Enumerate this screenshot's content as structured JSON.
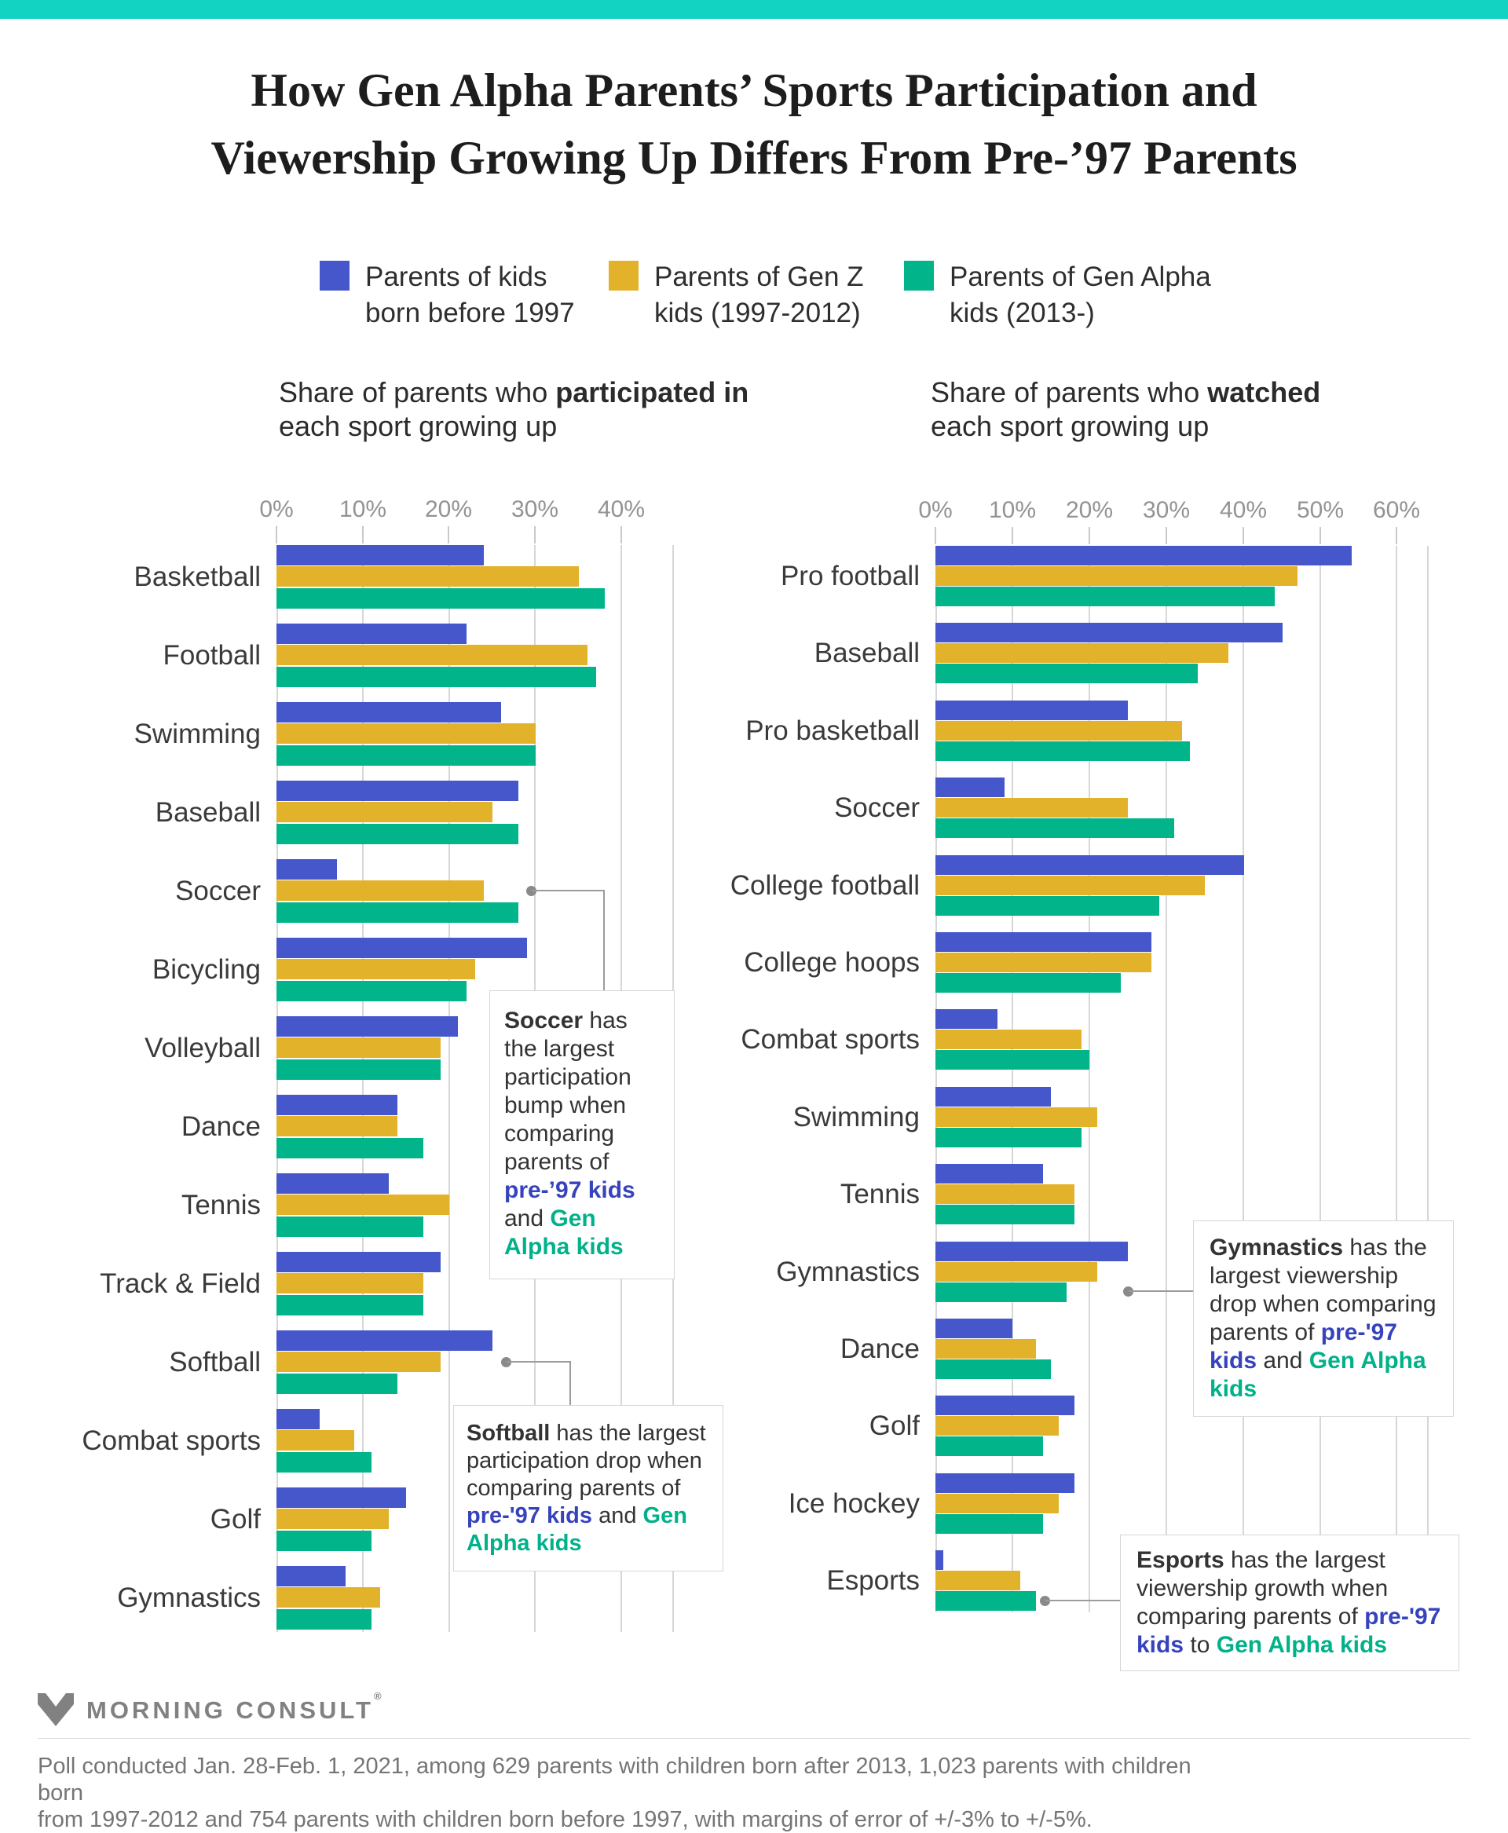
{
  "accent_color": "#12d2c2",
  "bar_colors": {
    "pre97": "#4557cb",
    "genz": "#e3b22b",
    "genalpha": "#02b489"
  },
  "title": {
    "line1": "How Gen Alpha Parents’ Sports Participation and",
    "line2": "Viewership Growing Up Differs From Pre-’97 Parents"
  },
  "legend": {
    "items": [
      {
        "line1": "Parents of kids",
        "line2": "born before 1997",
        "color": "#4557cb"
      },
      {
        "line1": "Parents of Gen Z",
        "line2": "kids (1997-2012)",
        "color": "#e3b22b"
      },
      {
        "line1": "Parents of Gen Alpha",
        "line2": "kids (2013-)",
        "color": "#02b489"
      }
    ]
  },
  "chart_data": [
    {
      "type": "bar",
      "orientation": "horizontal",
      "id": "participation",
      "subtitle_segments": [
        {
          "t": "Share of parents who "
        },
        {
          "t": "participated in",
          "s": "b"
        },
        {
          "t": " each sport growing up"
        }
      ],
      "x_ticks": [
        "0%",
        "10%",
        "20%",
        "30%",
        "40%"
      ],
      "xlim": [
        0,
        46
      ],
      "grid": true,
      "legend_position": "top",
      "series_names": [
        "Parents of kids born before 1997",
        "Parents of Gen Z kids (1997-2012)",
        "Parents of Gen Alpha kids (2013-)"
      ],
      "rows": [
        {
          "label": "Basketball",
          "values": [
            24,
            35,
            38
          ]
        },
        {
          "label": "Football",
          "values": [
            22,
            36,
            37
          ]
        },
        {
          "label": "Swimming",
          "values": [
            26,
            30,
            30
          ]
        },
        {
          "label": "Baseball",
          "values": [
            28,
            25,
            28
          ]
        },
        {
          "label": "Soccer",
          "values": [
            7,
            24,
            28
          ]
        },
        {
          "label": "Bicycling",
          "values": [
            29,
            23,
            22
          ]
        },
        {
          "label": "Volleyball",
          "values": [
            21,
            19,
            19
          ]
        },
        {
          "label": "Dance",
          "values": [
            14,
            14,
            17
          ]
        },
        {
          "label": "Tennis",
          "values": [
            13,
            20,
            17
          ]
        },
        {
          "label": "Track & Field",
          "values": [
            19,
            17,
            17
          ]
        },
        {
          "label": "Softball",
          "values": [
            25,
            19,
            14
          ]
        },
        {
          "label": "Combat sports",
          "values": [
            5,
            9,
            11
          ]
        },
        {
          "label": "Golf",
          "values": [
            15,
            13,
            11
          ]
        },
        {
          "label": "Gymnastics",
          "values": [
            8,
            12,
            11
          ]
        }
      ]
    },
    {
      "type": "bar",
      "orientation": "horizontal",
      "id": "viewership",
      "subtitle_segments": [
        {
          "t": "Share of parents who "
        },
        {
          "t": "watched",
          "s": "b"
        },
        {
          "t": " each sport growing up"
        }
      ],
      "x_ticks": [
        "0%",
        "10%",
        "20%",
        "30%",
        "40%",
        "50%",
        "60%"
      ],
      "xlim": [
        0,
        64
      ],
      "grid": true,
      "legend_position": "top",
      "series_names": [
        "Parents of kids born before 1997",
        "Parents of Gen Z kids (1997-2012)",
        "Parents of Gen Alpha kids (2013-)"
      ],
      "rows": [
        {
          "label": "Pro football",
          "values": [
            54,
            47,
            44
          ]
        },
        {
          "label": "Baseball",
          "values": [
            45,
            38,
            34
          ]
        },
        {
          "label": "Pro basketball",
          "values": [
            25,
            32,
            33
          ]
        },
        {
          "label": "Soccer",
          "values": [
            9,
            25,
            31
          ]
        },
        {
          "label": "College football",
          "values": [
            40,
            35,
            29
          ]
        },
        {
          "label": "College hoops",
          "values": [
            28,
            28,
            24
          ]
        },
        {
          "label": "Combat sports",
          "values": [
            8,
            19,
            20
          ]
        },
        {
          "label": "Swimming",
          "values": [
            15,
            21,
            19
          ]
        },
        {
          "label": "Tennis",
          "values": [
            14,
            18,
            18
          ]
        },
        {
          "label": "Gymnastics",
          "values": [
            25,
            21,
            17
          ]
        },
        {
          "label": "Dance",
          "values": [
            10,
            13,
            15
          ]
        },
        {
          "label": "Golf",
          "values": [
            18,
            16,
            14
          ]
        },
        {
          "label": "Ice hockey",
          "values": [
            18,
            16,
            14
          ]
        },
        {
          "label": "Esports",
          "values": [
            1,
            11,
            13
          ]
        }
      ]
    }
  ],
  "annotations": {
    "soccer": [
      {
        "t": "Soccer",
        "s": "b"
      },
      {
        "t": " has the largest participation bump when comparing parents of "
      },
      {
        "t": "pre-’97 kids",
        "s": "blue"
      },
      {
        "t": " and "
      },
      {
        "t": "Gen Alpha kids",
        "s": "green"
      }
    ],
    "softball": [
      {
        "t": "Softball",
        "s": "b"
      },
      {
        "t": " has the largest participation drop when comparing parents of "
      },
      {
        "t": "pre-'97 kids",
        "s": "blue"
      },
      {
        "t": " and "
      },
      {
        "t": "Gen Alpha kids",
        "s": "green"
      }
    ],
    "gymnastics": [
      {
        "t": "Gymnastics",
        "s": "b"
      },
      {
        "t": " has the largest viewership drop when comparing parents of "
      },
      {
        "t": "pre-'97 kids",
        "s": "blue"
      },
      {
        "t": " and "
      },
      {
        "t": "Gen Alpha kids",
        "s": "green"
      }
    ],
    "esports": [
      {
        "t": "Esports",
        "s": "b"
      },
      {
        "t": " has the largest viewership growth when comparing parents of "
      },
      {
        "t": "pre-'97 kids",
        "s": "blue"
      },
      {
        "t": " to "
      },
      {
        "t": "Gen Alpha kids",
        "s": "green"
      }
    ]
  },
  "footer": {
    "logo_text": "MORNING CONSULT",
    "reg_mark": "®",
    "line1": "Poll conducted Jan. 28-Feb. 1, 2021, among 629 parents with children born after 2013, 1,023 parents with children born",
    "line2": "from 1997-2012 and 754 parents with children born before 1997, with margins of error of +/-3% to +/-5%."
  }
}
